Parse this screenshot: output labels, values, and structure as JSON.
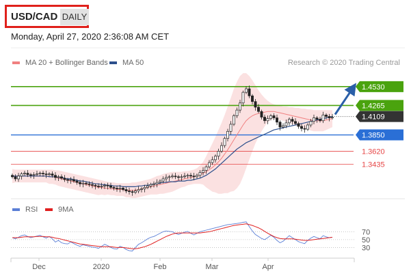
{
  "header": {
    "pair": "USD/CAD",
    "timeframe": "DAILY"
  },
  "datetime": "Monday, April 27, 2020 2:36:08 AM CET",
  "legend": {
    "items": [
      {
        "label": "MA 20 + Bollinger Bands",
        "color": "#f08080"
      },
      {
        "label": "MA 50",
        "color": "#2c4f8c"
      }
    ],
    "credit": "Research © 2020 Trading Central"
  },
  "colors": {
    "resistance": "#4aa30e",
    "pivot": "#2a6fd6",
    "support": "#e64545",
    "current": "#333333",
    "candle_up": "#222222",
    "candle_down": "#222222",
    "band": "#fadada",
    "ma20": "#f08080",
    "ma50": "#2c4f8c",
    "rsi": "#5b7fd6",
    "rsi_ma": "#e02020"
  },
  "chart_data": [
    {
      "type": "candlestick",
      "title": "USD/CAD Daily",
      "x_labels": [
        "Dec",
        "2020",
        "Feb",
        "Mar",
        "Apr"
      ],
      "ylim": [
        1.296,
        1.475
      ],
      "levels": [
        {
          "value": 1.453,
          "label": "1.4530",
          "kind": "resistance",
          "tag": true
        },
        {
          "value": 1.4265,
          "label": "1.4265",
          "kind": "resistance",
          "tag": true
        },
        {
          "value": 1.4109,
          "label": "1.4109",
          "kind": "current",
          "tag": true
        },
        {
          "value": 1.385,
          "label": "1.3850",
          "kind": "pivot",
          "tag": true
        },
        {
          "value": 1.362,
          "label": "1.3620",
          "kind": "support",
          "tag": false
        },
        {
          "value": 1.3435,
          "label": "1.3435",
          "kind": "support",
          "tag": false
        }
      ],
      "closes": [
        1.326,
        1.323,
        1.327,
        1.33,
        1.331,
        1.329,
        1.328,
        1.329,
        1.33,
        1.331,
        1.33,
        1.329,
        1.33,
        1.328,
        1.325,
        1.326,
        1.324,
        1.322,
        1.321,
        1.322,
        1.32,
        1.318,
        1.316,
        1.317,
        1.316,
        1.315,
        1.314,
        1.313,
        1.312,
        1.313,
        1.314,
        1.313,
        1.311,
        1.31,
        1.309,
        1.31,
        1.308,
        1.306,
        1.305,
        1.304,
        1.306,
        1.308,
        1.309,
        1.311,
        1.313,
        1.315,
        1.316,
        1.318,
        1.32,
        1.323,
        1.325,
        1.326,
        1.327,
        1.326,
        1.325,
        1.326,
        1.327,
        1.328,
        1.327,
        1.326,
        1.328,
        1.332,
        1.335,
        1.34,
        1.346,
        1.35,
        1.355,
        1.362,
        1.37,
        1.38,
        1.39,
        1.4,
        1.412,
        1.42,
        1.43,
        1.445,
        1.45,
        1.44,
        1.432,
        1.424,
        1.418,
        1.41,
        1.405,
        1.408,
        1.412,
        1.409,
        1.403,
        1.396,
        1.398,
        1.402,
        1.407,
        1.404,
        1.401,
        1.397,
        1.394,
        1.393,
        1.399,
        1.404,
        1.409,
        1.407,
        1.405,
        1.413,
        1.411,
        1.409,
        1.41
      ],
      "ma50": [
        1.327,
        1.327,
        1.327,
        1.327,
        1.327,
        1.327,
        1.327,
        1.327,
        1.327,
        1.327,
        1.327,
        1.327,
        1.326,
        1.326,
        1.326,
        1.325,
        1.325,
        1.324,
        1.323,
        1.323,
        1.322,
        1.321,
        1.32,
        1.32,
        1.319,
        1.318,
        1.317,
        1.316,
        1.316,
        1.315,
        1.315,
        1.314,
        1.314,
        1.313,
        1.313,
        1.313,
        1.312,
        1.312,
        1.312,
        1.312,
        1.312,
        1.313,
        1.313,
        1.314,
        1.314,
        1.315,
        1.316,
        1.316,
        1.317,
        1.318,
        1.318,
        1.319,
        1.319,
        1.319,
        1.32,
        1.32,
        1.32,
        1.321,
        1.321,
        1.322,
        1.323,
        1.324,
        1.326,
        1.328,
        1.331,
        1.334,
        1.337,
        1.341,
        1.345,
        1.349,
        1.353,
        1.357,
        1.361,
        1.365,
        1.368,
        1.371,
        1.374,
        1.376,
        1.378,
        1.38,
        1.382,
        1.384,
        1.386,
        1.388,
        1.39,
        1.392,
        1.393,
        1.394,
        1.395,
        1.396,
        1.397,
        1.398,
        1.399,
        1.4,
        1.401,
        1.402,
        1.403,
        1.404,
        1.405,
        1.406,
        1.407,
        1.408,
        1.409,
        1.41,
        1.411
      ],
      "ma20": [
        1.327,
        1.327,
        1.327,
        1.327,
        1.327,
        1.327,
        1.327,
        1.327,
        1.327,
        1.327,
        1.327,
        1.327,
        1.326,
        1.326,
        1.325,
        1.324,
        1.323,
        1.322,
        1.321,
        1.32,
        1.319,
        1.318,
        1.317,
        1.316,
        1.315,
        1.314,
        1.313,
        1.312,
        1.311,
        1.311,
        1.31,
        1.31,
        1.309,
        1.309,
        1.308,
        1.308,
        1.308,
        1.307,
        1.307,
        1.307,
        1.307,
        1.308,
        1.309,
        1.31,
        1.311,
        1.312,
        1.313,
        1.314,
        1.315,
        1.316,
        1.317,
        1.318,
        1.319,
        1.32,
        1.321,
        1.322,
        1.323,
        1.324,
        1.325,
        1.326,
        1.327,
        1.329,
        1.331,
        1.333,
        1.336,
        1.339,
        1.343,
        1.347,
        1.352,
        1.358,
        1.364,
        1.371,
        1.378,
        1.385,
        1.392,
        1.399,
        1.405,
        1.409,
        1.412,
        1.414,
        1.415,
        1.416,
        1.417,
        1.418,
        1.418,
        1.418,
        1.417,
        1.416,
        1.415,
        1.414,
        1.413,
        1.412,
        1.411,
        1.41,
        1.409,
        1.408,
        1.407,
        1.406,
        1.405,
        1.405,
        1.405,
        1.405,
        1.406,
        1.407,
        1.408
      ],
      "band_upper": [
        1.337,
        1.336,
        1.336,
        1.336,
        1.336,
        1.336,
        1.336,
        1.336,
        1.336,
        1.336,
        1.336,
        1.336,
        1.336,
        1.336,
        1.335,
        1.335,
        1.334,
        1.333,
        1.332,
        1.331,
        1.33,
        1.329,
        1.328,
        1.327,
        1.326,
        1.325,
        1.324,
        1.323,
        1.322,
        1.321,
        1.32,
        1.319,
        1.318,
        1.318,
        1.317,
        1.317,
        1.317,
        1.317,
        1.317,
        1.318,
        1.318,
        1.319,
        1.32,
        1.321,
        1.322,
        1.323,
        1.325,
        1.327,
        1.328,
        1.33,
        1.331,
        1.332,
        1.333,
        1.333,
        1.333,
        1.333,
        1.334,
        1.334,
        1.335,
        1.336,
        1.338,
        1.342,
        1.347,
        1.355,
        1.364,
        1.373,
        1.382,
        1.392,
        1.402,
        1.413,
        1.425,
        1.437,
        1.45,
        1.46,
        1.468,
        1.472,
        1.472,
        1.468,
        1.462,
        1.455,
        1.448,
        1.442,
        1.437,
        1.433,
        1.43,
        1.428,
        1.427,
        1.426,
        1.425,
        1.425,
        1.424,
        1.424,
        1.423,
        1.423,
        1.422,
        1.422,
        1.421,
        1.421,
        1.42,
        1.42,
        1.42,
        1.42,
        1.42,
        1.42,
        1.42
      ],
      "band_lower": [
        1.317,
        1.318,
        1.318,
        1.318,
        1.318,
        1.318,
        1.318,
        1.318,
        1.318,
        1.318,
        1.318,
        1.318,
        1.316,
        1.316,
        1.315,
        1.313,
        1.312,
        1.311,
        1.31,
        1.309,
        1.308,
        1.307,
        1.306,
        1.305,
        1.304,
        1.303,
        1.302,
        1.301,
        1.3,
        1.301,
        1.3,
        1.301,
        1.3,
        1.3,
        1.299,
        1.299,
        1.299,
        1.297,
        1.297,
        1.296,
        1.296,
        1.297,
        1.298,
        1.299,
        1.3,
        1.301,
        1.301,
        1.301,
        1.302,
        1.302,
        1.303,
        1.304,
        1.305,
        1.307,
        1.309,
        1.311,
        1.312,
        1.314,
        1.315,
        1.316,
        1.316,
        1.316,
        1.315,
        1.311,
        1.308,
        1.305,
        1.304,
        1.302,
        1.302,
        1.303,
        1.303,
        1.305,
        1.306,
        1.31,
        1.316,
        1.326,
        1.338,
        1.35,
        1.362,
        1.373,
        1.382,
        1.39,
        1.397,
        1.403,
        1.406,
        1.408,
        1.407,
        1.406,
        1.405,
        1.403,
        1.402,
        1.4,
        1.399,
        1.397,
        1.396,
        1.394,
        1.393,
        1.391,
        1.39,
        1.39,
        1.39,
        1.39,
        1.392,
        1.394,
        1.396
      ],
      "forecast": {
        "from": 1.4109,
        "to": 1.453
      }
    },
    {
      "type": "line",
      "title": "RSI",
      "series": [
        {
          "name": "RSI",
          "values": [
            55,
            52,
            56,
            60,
            62,
            58,
            55,
            57,
            59,
            61,
            57,
            54,
            58,
            52,
            44,
            48,
            42,
            40,
            39,
            44,
            40,
            36,
            33,
            37,
            35,
            33,
            31,
            30,
            28,
            33,
            38,
            35,
            30,
            27,
            26,
            33,
            30,
            25,
            22,
            21,
            30,
            38,
            42,
            47,
            52,
            56,
            58,
            62,
            66,
            70,
            72,
            71,
            70,
            66,
            63,
            66,
            69,
            71,
            66,
            62,
            66,
            70,
            72,
            74,
            76,
            78,
            80,
            82,
            84,
            86,
            88,
            89,
            90,
            91,
            92,
            94,
            95,
            83,
            72,
            63,
            58,
            53,
            50,
            55,
            61,
            56,
            48,
            42,
            46,
            53,
            60,
            55,
            50,
            45,
            42,
            40,
            48,
            54,
            58,
            55,
            52,
            60,
            57,
            55,
            56
          ]
        },
        {
          "name": "9MA",
          "values": [
            55,
            55,
            55,
            56,
            57,
            57,
            57,
            57,
            58,
            58,
            58,
            57,
            57,
            56,
            54,
            53,
            51,
            49,
            47,
            45,
            43,
            41,
            39,
            38,
            37,
            36,
            35,
            34,
            33,
            32,
            32,
            32,
            32,
            31,
            30,
            30,
            30,
            29,
            28,
            27,
            27,
            28,
            30,
            32,
            35,
            38,
            42,
            46,
            50,
            54,
            58,
            61,
            64,
            66,
            67,
            67,
            67,
            67,
            67,
            67,
            67,
            67,
            68,
            69,
            70,
            72,
            74,
            76,
            78,
            80,
            82,
            84,
            86,
            87,
            88,
            89,
            90,
            88,
            86,
            83,
            80,
            76,
            71,
            66,
            62,
            58,
            55,
            53,
            52,
            52,
            52,
            52,
            51,
            50,
            49,
            48,
            48,
            49,
            50,
            51,
            52,
            53,
            54,
            55,
            56
          ]
        }
      ],
      "ylim": [
        10,
        100
      ],
      "levels": [
        70,
        50,
        30
      ]
    }
  ]
}
